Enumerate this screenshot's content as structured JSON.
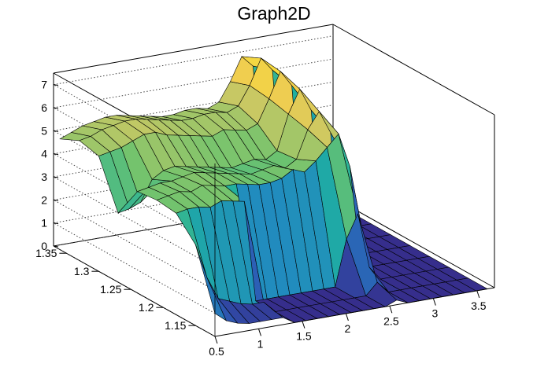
{
  "chart_data": {
    "type": "surface",
    "title": "Graph2D",
    "xlabel": "",
    "ylabel": "",
    "zlabel": "",
    "x_range": [
      0.5,
      3.7
    ],
    "y_range": [
      1.12,
      1.37
    ],
    "z_range": [
      0,
      7.5
    ],
    "x_ticks": [
      "0.5",
      "1",
      "1.5",
      "2",
      "2.5",
      "3",
      "3.5"
    ],
    "x_tick_values": [
      0.5,
      1,
      1.5,
      2,
      2.5,
      3,
      3.5
    ],
    "y_ticks": [
      "1.15",
      "1.2",
      "1.25",
      "1.3",
      "1.35"
    ],
    "y_tick_values": [
      1.15,
      1.2,
      1.25,
      1.3,
      1.35
    ],
    "z_ticks": [
      "0",
      "1",
      "2",
      "3",
      "4",
      "5",
      "6",
      "7"
    ],
    "z_tick_values": [
      0,
      1,
      2,
      3,
      4,
      5,
      6,
      7
    ],
    "grid": true,
    "colormap": "viridis",
    "grid_x": [
      0.5,
      0.63,
      0.76,
      0.89,
      1.02,
      1.15,
      1.28,
      1.41,
      1.54,
      1.67,
      1.8,
      1.93,
      2.06,
      2.19,
      2.32,
      2.45,
      2.58,
      2.71,
      2.84,
      2.97,
      3.1,
      3.23,
      3.36,
      3.49,
      3.62
    ],
    "grid_y": [
      1.12,
      1.15,
      1.18,
      1.21,
      1.24,
      1.27,
      1.3,
      1.33,
      1.36
    ],
    "z_values": [
      [
        1.0,
        0.6,
        0.4,
        0.3,
        0.3,
        0.3,
        0.3,
        0.0,
        0.0,
        0.0,
        0.0,
        0.0,
        0.0,
        0.0,
        0.0,
        0.0,
        0.2,
        0.0,
        0.0,
        0.0,
        0.0,
        0.0,
        0.0,
        0.0,
        0.0
      ],
      [
        3.5,
        2.0,
        1.0,
        0.8,
        0.6,
        0.5,
        0.5,
        0.0,
        0.0,
        0.0,
        0.0,
        0.0,
        0.0,
        0.0,
        0.0,
        0.0,
        0.5,
        0.0,
        0.0,
        0.0,
        0.0,
        0.0,
        0.0,
        0.0,
        0.0
      ],
      [
        4.4,
        4.5,
        4.5,
        4.4,
        4.6,
        4.5,
        4.4,
        0.0,
        0.0,
        0.0,
        0.0,
        0.0,
        0.0,
        0.0,
        0.0,
        2.0,
        3.0,
        0.6,
        0.0,
        0.0,
        0.0,
        0.0,
        0.0,
        0.0,
        0.0
      ],
      [
        4.5,
        4.6,
        4.7,
        4.6,
        4.8,
        4.7,
        4.6,
        4.6,
        4.5,
        4.4,
        4.4,
        4.5,
        4.8,
        4.6,
        5.0,
        5.5,
        6.0,
        4.5,
        0.1,
        0.0,
        0.0,
        0.0,
        0.0,
        0.0,
        0.0
      ],
      [
        4.4,
        4.5,
        4.6,
        4.6,
        4.7,
        4.8,
        4.7,
        4.6,
        4.5,
        4.4,
        4.3,
        4.4,
        4.5,
        4.3,
        4.6,
        5.8,
        6.5,
        5.5,
        0.2,
        0.0,
        0.0,
        0.0,
        0.0,
        0.0,
        0.0
      ],
      [
        3.0,
        3.1,
        3.3,
        4.2,
        4.5,
        4.6,
        4.5,
        4.4,
        4.3,
        4.2,
        4.1,
        4.2,
        4.3,
        4.2,
        4.5,
        6.0,
        7.0,
        6.0,
        0.3,
        0.0,
        0.0,
        0.0,
        0.0,
        0.0,
        0.0
      ],
      [
        5.0,
        5.1,
        5.2,
        5.4,
        5.6,
        5.6,
        5.4,
        5.3,
        5.2,
        5.1,
        5.0,
        5.2,
        5.1,
        5.0,
        5.2,
        6.2,
        7.3,
        6.6,
        0.5,
        0.0,
        0.0,
        0.0,
        0.0,
        0.0,
        0.0
      ],
      [
        5.2,
        5.3,
        5.5,
        5.6,
        5.7,
        5.7,
        5.6,
        5.5,
        5.4,
        5.3,
        5.3,
        5.4,
        5.4,
        5.3,
        5.5,
        6.3,
        7.4,
        6.8,
        0.6,
        0.0,
        0.0,
        0.0,
        0.0,
        0.0,
        0.0
      ],
      [
        4.8,
        5.0,
        5.2,
        5.3,
        5.4,
        5.4,
        5.3,
        5.2,
        5.1,
        5.0,
        5.0,
        5.1,
        5.1,
        5.0,
        5.2,
        6.0,
        7.0,
        6.5,
        0.5,
        0.0,
        0.0,
        0.0,
        0.0,
        0.0,
        0.0
      ]
    ]
  }
}
